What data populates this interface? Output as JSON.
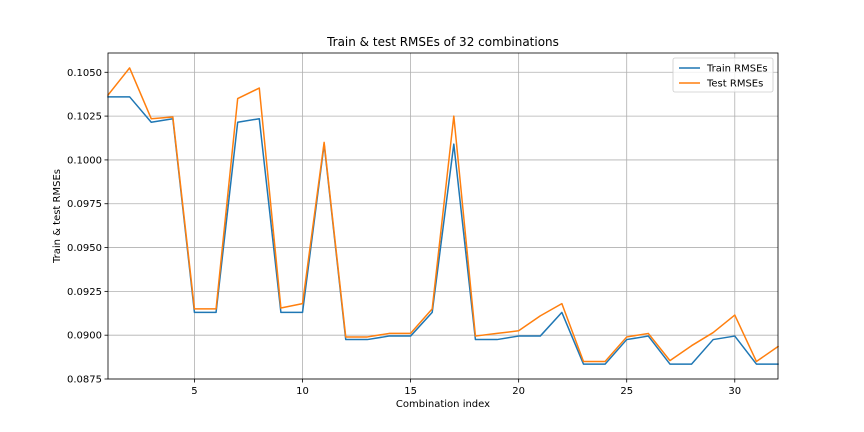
{
  "chart_data": {
    "type": "line",
    "title": "Train & test RMSEs of 32 combinations",
    "xlabel": "Combination index",
    "ylabel": "Train & test RMSEs",
    "xlim": [
      1,
      32
    ],
    "ylim": [
      0.0875,
      0.1061
    ],
    "x_ticks": [
      5,
      10,
      15,
      20,
      25,
      30
    ],
    "y_ticks": [
      0.0875,
      0.09,
      0.0925,
      0.095,
      0.0975,
      0.1,
      0.1025,
      0.105
    ],
    "y_tick_labels": [
      "0.0875",
      "0.0900",
      "0.0925",
      "0.0950",
      "0.0975",
      "0.1000",
      "0.1025",
      "0.1050"
    ],
    "grid": true,
    "legend_position": "top-right",
    "x": [
      1,
      2,
      3,
      4,
      5,
      6,
      7,
      8,
      9,
      10,
      11,
      12,
      13,
      14,
      15,
      16,
      17,
      18,
      19,
      20,
      21,
      22,
      23,
      24,
      25,
      26,
      27,
      28,
      29,
      30,
      31,
      32
    ],
    "series": [
      {
        "name": "Train RMSEs",
        "color": "#1f77b4",
        "values": [
          0.1036,
          0.1036,
          0.10215,
          0.10235,
          0.0913,
          0.0913,
          0.10215,
          0.10235,
          0.0913,
          0.0913,
          0.1009,
          0.08975,
          0.08975,
          0.08995,
          0.08995,
          0.0913,
          0.1009,
          0.08975,
          0.08975,
          0.08995,
          0.08995,
          0.0913,
          0.08835,
          0.08835,
          0.08975,
          0.08995,
          0.08835,
          0.08835,
          0.08975,
          0.08995,
          0.08835,
          0.08835
        ]
      },
      {
        "name": "Test RMSEs",
        "color": "#ff7f0e",
        "values": [
          0.1037,
          0.10525,
          0.10235,
          0.10245,
          0.0915,
          0.0915,
          0.1035,
          0.1041,
          0.09155,
          0.0918,
          0.101,
          0.0899,
          0.0899,
          0.0901,
          0.0901,
          0.0915,
          0.1025,
          0.08995,
          0.0901,
          0.09025,
          0.0911,
          0.0918,
          0.0885,
          0.0885,
          0.0899,
          0.0901,
          0.08855,
          0.0894,
          0.09015,
          0.09115,
          0.0885,
          0.08935
        ]
      }
    ]
  }
}
